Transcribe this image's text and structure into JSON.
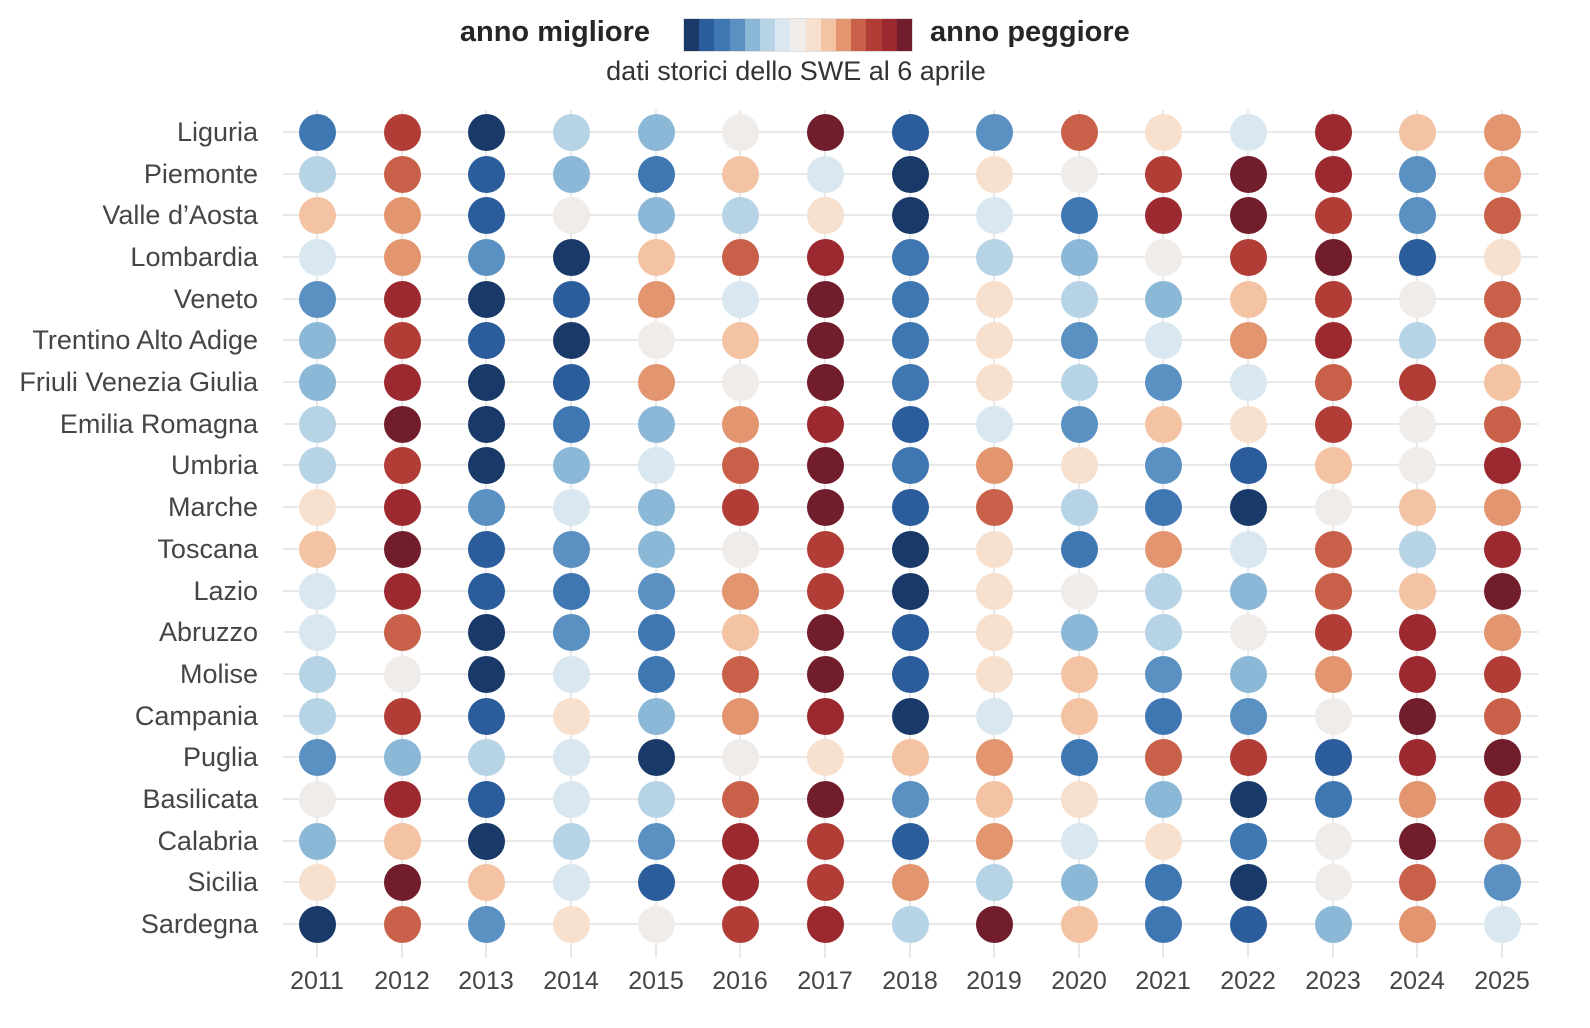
{
  "chart_data": {
    "type": "heatmap",
    "legend_left": "anno migliore",
    "legend_right": "anno peggiore",
    "subtitle": "dati storici dello SWE al 6 aprile",
    "legend_position": "top",
    "grid": true,
    "rank_scale": {
      "best": 1,
      "worst": 15,
      "meaning": "classifica relativa per regione dello SWE al 6 aprile: 1 = anno migliore (blu scuro), 15 = anno peggiore (rosso scuro)"
    },
    "palette": [
      "#193a69",
      "#2b5d9c",
      "#3f77b2",
      "#5b91c2",
      "#8cb8d7",
      "#b7d3e6",
      "#d9e7f1",
      "#efecea",
      "#f7e0ce",
      "#f3c3a3",
      "#e39570",
      "#c9614a",
      "#b23d37",
      "#9d2930",
      "#721d2b"
    ],
    "categories": [
      "2011",
      "2012",
      "2013",
      "2014",
      "2015",
      "2016",
      "2017",
      "2018",
      "2019",
      "2020",
      "2021",
      "2022",
      "2023",
      "2024",
      "2025"
    ],
    "series": [
      {
        "name": "Liguria",
        "ranks": [
          3,
          13,
          1,
          6,
          5,
          8,
          15,
          2,
          4,
          12,
          9,
          7,
          14,
          10,
          11
        ]
      },
      {
        "name": "Piemonte",
        "ranks": [
          6,
          12,
          2,
          5,
          3,
          10,
          7,
          1,
          9,
          8,
          13,
          15,
          14,
          4,
          11
        ]
      },
      {
        "name": "Valle d’Aosta",
        "ranks": [
          10,
          11,
          2,
          8,
          5,
          6,
          9,
          1,
          7,
          3,
          14,
          15,
          13,
          4,
          12
        ]
      },
      {
        "name": "Lombardia",
        "ranks": [
          7,
          11,
          4,
          1,
          10,
          12,
          14,
          3,
          6,
          5,
          8,
          13,
          15,
          2,
          9
        ]
      },
      {
        "name": "Veneto",
        "ranks": [
          4,
          14,
          1,
          2,
          11,
          7,
          15,
          3,
          9,
          6,
          5,
          10,
          13,
          8,
          12
        ]
      },
      {
        "name": "Trentino Alto Adige",
        "ranks": [
          5,
          13,
          2,
          1,
          8,
          10,
          15,
          3,
          9,
          4,
          7,
          11,
          14,
          6,
          12
        ]
      },
      {
        "name": "Friuli Venezia Giulia",
        "ranks": [
          5,
          14,
          1,
          2,
          11,
          8,
          15,
          3,
          9,
          6,
          4,
          7,
          12,
          13,
          10
        ]
      },
      {
        "name": "Emilia Romagna",
        "ranks": [
          6,
          15,
          1,
          3,
          5,
          11,
          14,
          2,
          7,
          4,
          10,
          9,
          13,
          8,
          12
        ]
      },
      {
        "name": "Umbria",
        "ranks": [
          6,
          13,
          1,
          5,
          7,
          12,
          15,
          3,
          11,
          9,
          4,
          2,
          10,
          8,
          14
        ]
      },
      {
        "name": "Marche",
        "ranks": [
          9,
          14,
          4,
          7,
          5,
          13,
          15,
          2,
          12,
          6,
          3,
          1,
          8,
          10,
          11
        ]
      },
      {
        "name": "Toscana",
        "ranks": [
          10,
          15,
          2,
          4,
          5,
          8,
          13,
          1,
          9,
          3,
          11,
          7,
          12,
          6,
          14
        ]
      },
      {
        "name": "Lazio",
        "ranks": [
          7,
          14,
          2,
          3,
          4,
          11,
          13,
          1,
          9,
          8,
          6,
          5,
          12,
          10,
          15
        ]
      },
      {
        "name": "Abruzzo",
        "ranks": [
          7,
          12,
          1,
          4,
          3,
          10,
          15,
          2,
          9,
          5,
          6,
          8,
          13,
          14,
          11
        ]
      },
      {
        "name": "Molise",
        "ranks": [
          6,
          8,
          1,
          7,
          3,
          12,
          15,
          2,
          9,
          10,
          4,
          5,
          11,
          14,
          13
        ]
      },
      {
        "name": "Campania",
        "ranks": [
          6,
          13,
          2,
          9,
          5,
          11,
          14,
          1,
          7,
          10,
          3,
          4,
          8,
          15,
          12
        ]
      },
      {
        "name": "Puglia",
        "ranks": [
          4,
          5,
          6,
          7,
          1,
          8,
          9,
          10,
          11,
          3,
          12,
          13,
          2,
          14,
          15
        ]
      },
      {
        "name": "Basilicata",
        "ranks": [
          8,
          14,
          2,
          7,
          6,
          12,
          15,
          4,
          10,
          9,
          5,
          1,
          3,
          11,
          13
        ]
      },
      {
        "name": "Calabria",
        "ranks": [
          5,
          10,
          1,
          6,
          4,
          14,
          13,
          2,
          11,
          7,
          9,
          3,
          8,
          15,
          12
        ]
      },
      {
        "name": "Sicilia",
        "ranks": [
          9,
          15,
          10,
          7,
          2,
          14,
          13,
          11,
          6,
          5,
          3,
          1,
          8,
          12,
          4
        ]
      },
      {
        "name": "Sardegna",
        "ranks": [
          1,
          12,
          4,
          9,
          8,
          13,
          14,
          6,
          15,
          10,
          3,
          2,
          5,
          11,
          7
        ]
      }
    ]
  }
}
